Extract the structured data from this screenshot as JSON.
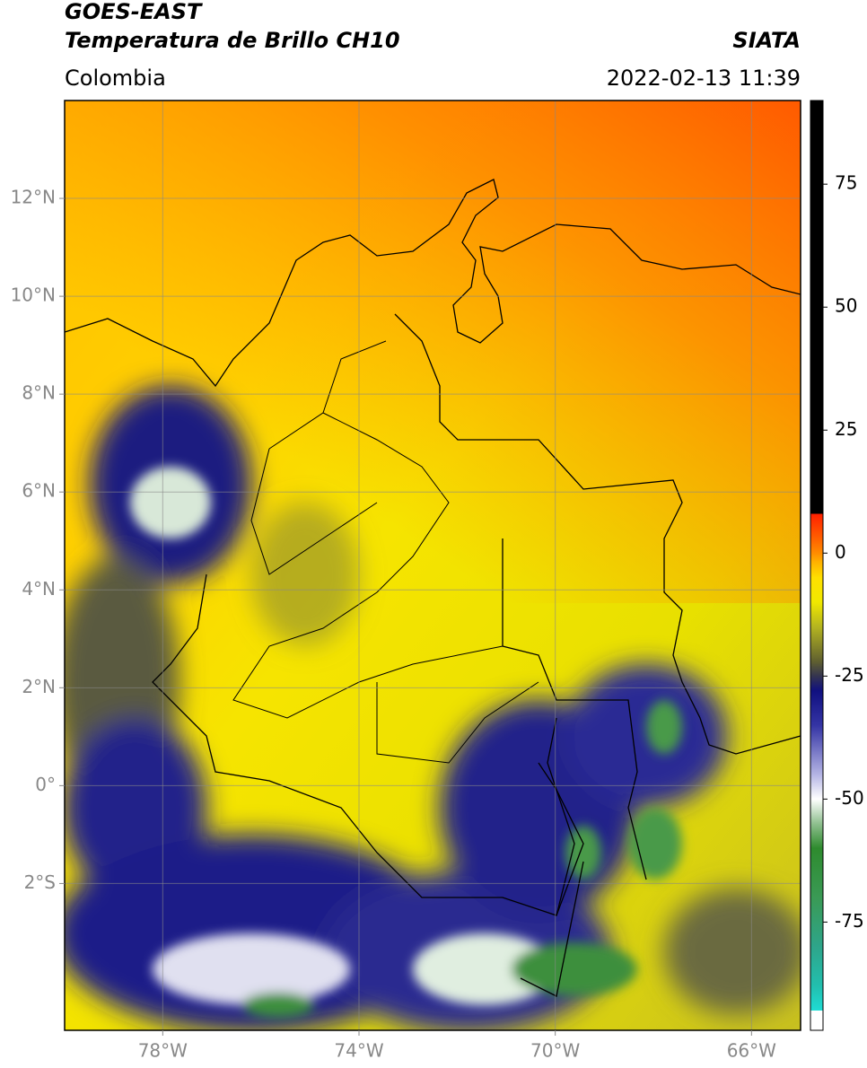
{
  "header": {
    "title_line1": "GOES-EAST",
    "title_line2": "Temperatura de Brillo CH10",
    "source": "SIATA",
    "region": "Colombia",
    "datetime": "2022-02-13 11:39"
  },
  "map": {
    "xlim": [
      -80,
      -65
    ],
    "ylim": [
      -5,
      14
    ],
    "grid": true,
    "xticks": [
      {
        "value": -78,
        "label": "78°W"
      },
      {
        "value": -74,
        "label": "74°W"
      },
      {
        "value": -70,
        "label": "70°W"
      },
      {
        "value": -66,
        "label": "66°W"
      }
    ],
    "yticks": [
      {
        "value": 12,
        "label": "12°N"
      },
      {
        "value": 10,
        "label": "10°N"
      },
      {
        "value": 8,
        "label": "8°N"
      },
      {
        "value": 6,
        "label": "6°N"
      },
      {
        "value": 4,
        "label": "4°N"
      },
      {
        "value": 2,
        "label": "2°N"
      },
      {
        "value": 0,
        "label": "0°"
      },
      {
        "value": -2,
        "label": "2°S"
      }
    ]
  },
  "colorbar": {
    "lim": [
      -97,
      92
    ],
    "ticks": [
      75,
      50,
      25,
      0,
      -25,
      -50,
      -75
    ],
    "colormap": [
      [
        -97,
        "#ffffff"
      ],
      [
        -93,
        "#ffffff"
      ],
      [
        -93,
        "#20dcd4"
      ],
      [
        -88,
        "#22bfae"
      ],
      [
        -80,
        "#2ea58a"
      ],
      [
        -70,
        "#3a9a55"
      ],
      [
        -60,
        "#2e8b2e"
      ],
      [
        -55,
        "#8fbf8f"
      ],
      [
        -50,
        "#ffffff"
      ],
      [
        -45,
        "#b4b4e4"
      ],
      [
        -35,
        "#3434a4"
      ],
      [
        -28,
        "#101080"
      ],
      [
        -25,
        "#343450"
      ],
      [
        -22,
        "#606030"
      ],
      [
        -15,
        "#b4b420"
      ],
      [
        -10,
        "#f0e800"
      ],
      [
        -5,
        "#ffe000"
      ],
      [
        -2,
        "#ffb400"
      ],
      [
        0,
        "#ff8c00"
      ],
      [
        3,
        "#ff6000"
      ],
      [
        8,
        "#ff2000"
      ],
      [
        8,
        "#000000"
      ],
      [
        92,
        "#000000"
      ]
    ]
  }
}
